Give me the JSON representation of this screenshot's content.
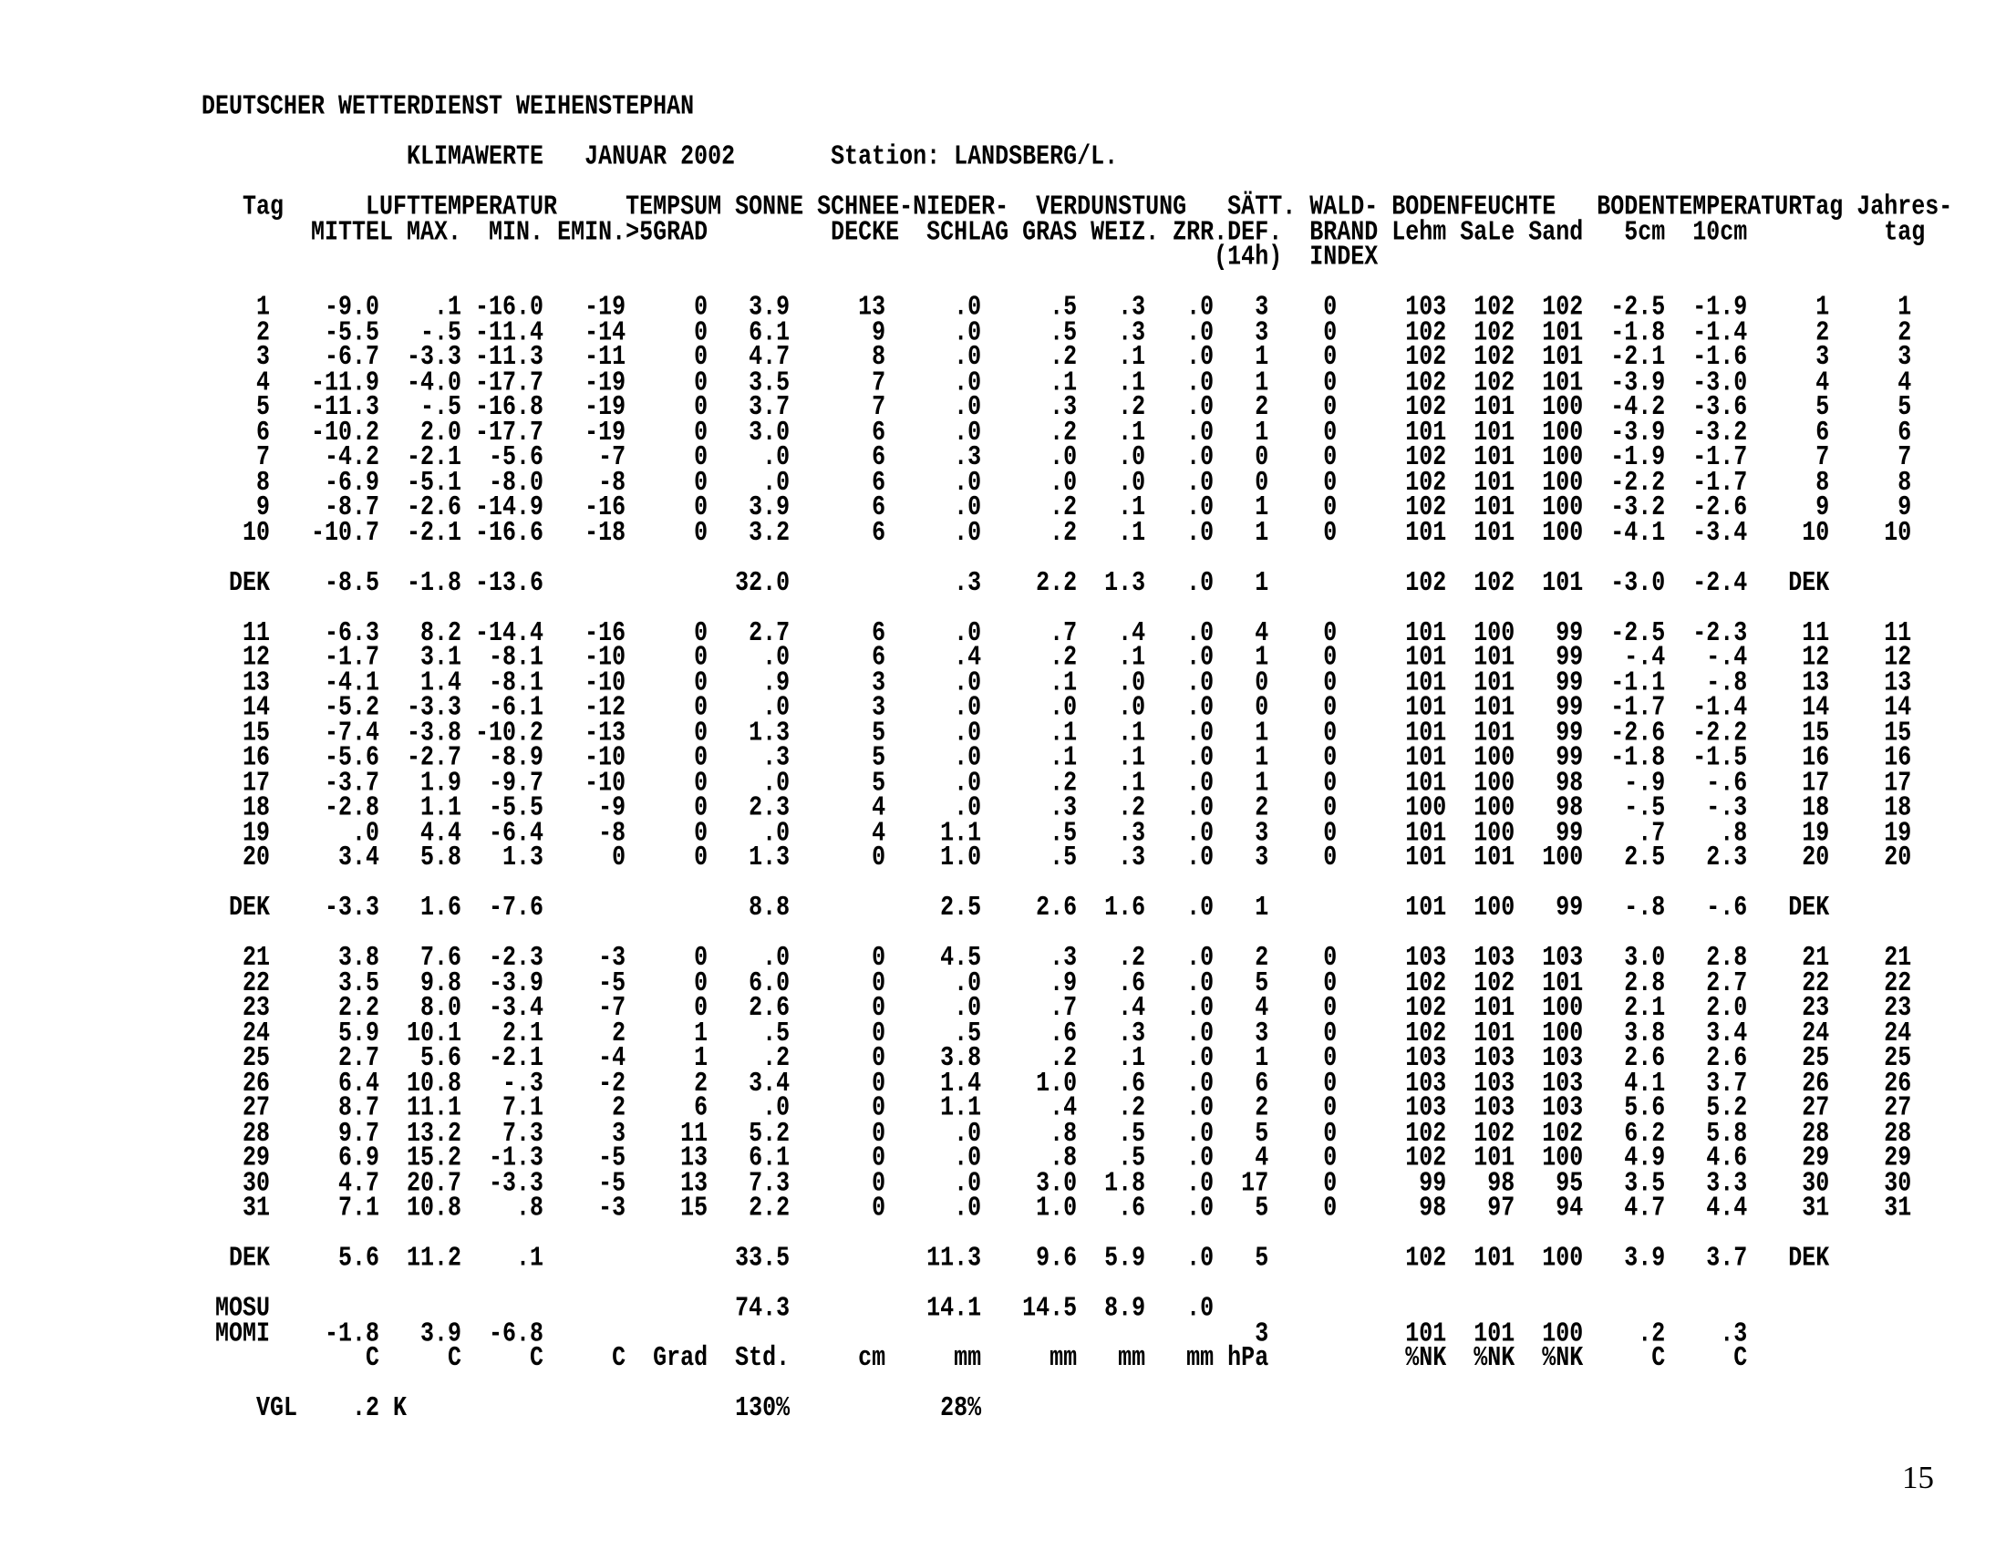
{
  "document": {
    "agency": "DEUTSCHER WETTERDIENST WEIHENSTEPHAN",
    "report_title": "KLIMAWERTE",
    "month": "JANUAR 2002",
    "station": "Station: LANDSBERG/L.",
    "page_number": "15"
  },
  "table": {
    "group_header": [
      "Tag",
      "LUFTTEMPERATUR",
      "TEMPSUM",
      "SONNE",
      "SCHNEE-",
      "NIEDER-",
      "VERDUNSTUNG",
      "SÄTT.",
      "WALD-",
      "BODENFEUCHTE",
      "BODENTEMPERATUR",
      "Tag",
      "Jahres-"
    ],
    "sub_header": [
      "MITTEL",
      "MAX.",
      "MIN.",
      "EMIN.",
      ">5GRAD",
      "DECKE",
      "SCHLAG",
      "GRAS",
      "WEIZ.",
      "ZRR.",
      "DEF.",
      "BRAND",
      "Lehm",
      "SaLe",
      "Sand",
      "5cm",
      "10cm",
      "tag"
    ],
    "sub_header2": [
      "(14h)",
      "INDEX"
    ],
    "day_rows": [
      [
        "1",
        "-9.0",
        ".1",
        "-16.0",
        "-19",
        "0",
        "3.9",
        "13",
        ".0",
        ".5",
        ".3",
        ".0",
        "3",
        "0",
        "103",
        "102",
        "102",
        "-2.5",
        "-1.9",
        "1",
        "1"
      ],
      [
        "2",
        "-5.5",
        "-.5",
        "-11.4",
        "-14",
        "0",
        "6.1",
        "9",
        ".0",
        ".5",
        ".3",
        ".0",
        "3",
        "0",
        "102",
        "102",
        "101",
        "-1.8",
        "-1.4",
        "2",
        "2"
      ],
      [
        "3",
        "-6.7",
        "-3.3",
        "-11.3",
        "-11",
        "0",
        "4.7",
        "8",
        ".0",
        ".2",
        ".1",
        ".0",
        "1",
        "0",
        "102",
        "102",
        "101",
        "-2.1",
        "-1.6",
        "3",
        "3"
      ],
      [
        "4",
        "-11.9",
        "-4.0",
        "-17.7",
        "-19",
        "0",
        "3.5",
        "7",
        ".0",
        ".1",
        ".1",
        ".0",
        "1",
        "0",
        "102",
        "102",
        "101",
        "-3.9",
        "-3.0",
        "4",
        "4"
      ],
      [
        "5",
        "-11.3",
        "-.5",
        "-16.8",
        "-19",
        "0",
        "3.7",
        "7",
        ".0",
        ".3",
        ".2",
        ".0",
        "2",
        "0",
        "102",
        "101",
        "100",
        "-4.2",
        "-3.6",
        "5",
        "5"
      ],
      [
        "6",
        "-10.2",
        "2.0",
        "-17.7",
        "-19",
        "0",
        "3.0",
        "6",
        ".0",
        ".2",
        ".1",
        ".0",
        "1",
        "0",
        "101",
        "101",
        "100",
        "-3.9",
        "-3.2",
        "6",
        "6"
      ],
      [
        "7",
        "-4.2",
        "-2.1",
        "-5.6",
        "-7",
        "0",
        ".0",
        "6",
        ".3",
        ".0",
        ".0",
        ".0",
        "0",
        "0",
        "102",
        "101",
        "100",
        "-1.9",
        "-1.7",
        "7",
        "7"
      ],
      [
        "8",
        "-6.9",
        "-5.1",
        "-8.0",
        "-8",
        "0",
        ".0",
        "6",
        ".0",
        ".0",
        ".0",
        ".0",
        "0",
        "0",
        "102",
        "101",
        "100",
        "-2.2",
        "-1.7",
        "8",
        "8"
      ],
      [
        "9",
        "-8.7",
        "-2.6",
        "-14.9",
        "-16",
        "0",
        "3.9",
        "6",
        ".0",
        ".2",
        ".1",
        ".0",
        "1",
        "0",
        "102",
        "101",
        "100",
        "-3.2",
        "-2.6",
        "9",
        "9"
      ],
      [
        "10",
        "-10.7",
        "-2.1",
        "-16.6",
        "-18",
        "0",
        "3.2",
        "6",
        ".0",
        ".2",
        ".1",
        ".0",
        "1",
        "0",
        "101",
        "101",
        "100",
        "-4.1",
        "-3.4",
        "10",
        "10"
      ],
      [
        "11",
        "-6.3",
        "8.2",
        "-14.4",
        "-16",
        "0",
        "2.7",
        "6",
        ".0",
        ".7",
        ".4",
        ".0",
        "4",
        "0",
        "101",
        "100",
        "99",
        "-2.5",
        "-2.3",
        "11",
        "11"
      ],
      [
        "12",
        "-1.7",
        "3.1",
        "-8.1",
        "-10",
        "0",
        ".0",
        "6",
        ".4",
        ".2",
        ".1",
        ".0",
        "1",
        "0",
        "101",
        "101",
        "99",
        "-.4",
        "-.4",
        "12",
        "12"
      ],
      [
        "13",
        "-4.1",
        "1.4",
        "-8.1",
        "-10",
        "0",
        ".9",
        "3",
        ".0",
        ".1",
        ".0",
        ".0",
        "0",
        "0",
        "101",
        "101",
        "99",
        "-1.1",
        "-.8",
        "13",
        "13"
      ],
      [
        "14",
        "-5.2",
        "-3.3",
        "-6.1",
        "-12",
        "0",
        ".0",
        "3",
        ".0",
        ".0",
        ".0",
        ".0",
        "0",
        "0",
        "101",
        "101",
        "99",
        "-1.7",
        "-1.4",
        "14",
        "14"
      ],
      [
        "15",
        "-7.4",
        "-3.8",
        "-10.2",
        "-13",
        "0",
        "1.3",
        "5",
        ".0",
        ".1",
        ".1",
        ".0",
        "1",
        "0",
        "101",
        "101",
        "99",
        "-2.6",
        "-2.2",
        "15",
        "15"
      ],
      [
        "16",
        "-5.6",
        "-2.7",
        "-8.9",
        "-10",
        "0",
        ".3",
        "5",
        ".0",
        ".1",
        ".1",
        ".0",
        "1",
        "0",
        "101",
        "100",
        "99",
        "-1.8",
        "-1.5",
        "16",
        "16"
      ],
      [
        "17",
        "-3.7",
        "1.9",
        "-9.7",
        "-10",
        "0",
        ".0",
        "5",
        ".0",
        ".2",
        ".1",
        ".0",
        "1",
        "0",
        "101",
        "100",
        "98",
        "-.9",
        "-.6",
        "17",
        "17"
      ],
      [
        "18",
        "-2.8",
        "1.1",
        "-5.5",
        "-9",
        "0",
        "2.3",
        "4",
        ".0",
        ".3",
        ".2",
        ".0",
        "2",
        "0",
        "100",
        "100",
        "98",
        "-.5",
        "-.3",
        "18",
        "18"
      ],
      [
        "19",
        ".0",
        "4.4",
        "-6.4",
        "-8",
        "0",
        ".0",
        "4",
        "1.1",
        ".5",
        ".3",
        ".0",
        "3",
        "0",
        "101",
        "100",
        "99",
        ".7",
        ".8",
        "19",
        "19"
      ],
      [
        "20",
        "3.4",
        "5.8",
        "1.3",
        "0",
        "0",
        "1.3",
        "0",
        "1.0",
        ".5",
        ".3",
        ".0",
        "3",
        "0",
        "101",
        "101",
        "100",
        "2.5",
        "2.3",
        "20",
        "20"
      ],
      [
        "21",
        "3.8",
        "7.6",
        "-2.3",
        "-3",
        "0",
        ".0",
        "0",
        "4.5",
        ".3",
        ".2",
        ".0",
        "2",
        "0",
        "103",
        "103",
        "103",
        "3.0",
        "2.8",
        "21",
        "21"
      ],
      [
        "22",
        "3.5",
        "9.8",
        "-3.9",
        "-5",
        "0",
        "6.0",
        "0",
        ".0",
        ".9",
        ".6",
        ".0",
        "5",
        "0",
        "102",
        "102",
        "101",
        "2.8",
        "2.7",
        "22",
        "22"
      ],
      [
        "23",
        "2.2",
        "8.0",
        "-3.4",
        "-7",
        "0",
        "2.6",
        "0",
        ".0",
        ".7",
        ".4",
        ".0",
        "4",
        "0",
        "102",
        "101",
        "100",
        "2.1",
        "2.0",
        "23",
        "23"
      ],
      [
        "24",
        "5.9",
        "10.1",
        "2.1",
        "2",
        "1",
        ".5",
        "0",
        ".5",
        ".6",
        ".3",
        ".0",
        "3",
        "0",
        "102",
        "101",
        "100",
        "3.8",
        "3.4",
        "24",
        "24"
      ],
      [
        "25",
        "2.7",
        "5.6",
        "-2.1",
        "-4",
        "1",
        ".2",
        "0",
        "3.8",
        ".2",
        ".1",
        ".0",
        "1",
        "0",
        "103",
        "103",
        "103",
        "2.6",
        "2.6",
        "25",
        "25"
      ],
      [
        "26",
        "6.4",
        "10.8",
        "-.3",
        "-2",
        "2",
        "3.4",
        "0",
        "1.4",
        "1.0",
        ".6",
        ".0",
        "6",
        "0",
        "103",
        "103",
        "103",
        "4.1",
        "3.7",
        "26",
        "26"
      ],
      [
        "27",
        "8.7",
        "11.1",
        "7.1",
        "2",
        "6",
        ".0",
        "0",
        "1.1",
        ".4",
        ".2",
        ".0",
        "2",
        "0",
        "103",
        "103",
        "103",
        "5.6",
        "5.2",
        "27",
        "27"
      ],
      [
        "28",
        "9.7",
        "13.2",
        "7.3",
        "3",
        "11",
        "5.2",
        "0",
        ".0",
        ".8",
        ".5",
        ".0",
        "5",
        "0",
        "102",
        "102",
        "102",
        "6.2",
        "5.8",
        "28",
        "28"
      ],
      [
        "29",
        "6.9",
        "15.2",
        "-1.3",
        "-5",
        "13",
        "6.1",
        "0",
        ".0",
        ".8",
        ".5",
        ".0",
        "4",
        "0",
        "102",
        "101",
        "100",
        "4.9",
        "4.6",
        "29",
        "29"
      ],
      [
        "30",
        "4.7",
        "20.7",
        "-3.3",
        "-5",
        "13",
        "7.3",
        "0",
        ".0",
        "3.0",
        "1.8",
        ".0",
        "17",
        "0",
        "99",
        "98",
        "95",
        "3.5",
        "3.3",
        "30",
        "30"
      ],
      [
        "31",
        "7.1",
        "10.8",
        ".8",
        "-3",
        "15",
        "2.2",
        "0",
        ".0",
        "1.0",
        ".6",
        ".0",
        "5",
        "0",
        "98",
        "97",
        "94",
        "4.7",
        "4.4",
        "31",
        "31"
      ]
    ],
    "dek_rows": [
      [
        "DEK",
        "-8.5",
        "-1.8",
        "-13.6",
        "",
        "",
        "32.0",
        "",
        ".3",
        "2.2",
        "1.3",
        ".0",
        "1",
        "",
        "102",
        "102",
        "101",
        "-3.0",
        "-2.4",
        "DEK",
        ""
      ],
      [
        "DEK",
        "-3.3",
        "1.6",
        "-7.6",
        "",
        "",
        "8.8",
        "",
        "2.5",
        "2.6",
        "1.6",
        ".0",
        "1",
        "",
        "101",
        "100",
        "99",
        "-.8",
        "-.6",
        "DEK",
        ""
      ],
      [
        "DEK",
        "5.6",
        "11.2",
        ".1",
        "",
        "",
        "33.5",
        "",
        "11.3",
        "9.6",
        "5.9",
        ".0",
        "5",
        "",
        "102",
        "101",
        "100",
        "3.9",
        "3.7",
        "DEK",
        ""
      ]
    ],
    "mosu_row": [
      "MOSU",
      "",
      "",
      "",
      "",
      "",
      "74.3",
      "",
      "14.1",
      "14.5",
      "8.9",
      ".0",
      "",
      "",
      "",
      "",
      "",
      "",
      "",
      "",
      ""
    ],
    "momi_row": [
      "MOMI",
      "-1.8",
      "3.9",
      "-6.8",
      "",
      "",
      "",
      "",
      "",
      "",
      "",
      "",
      "3",
      "",
      "101",
      "101",
      "100",
      ".2",
      ".3",
      "",
      ""
    ],
    "units_row": [
      "",
      "C",
      "C",
      "C",
      "C",
      "Grad",
      "Std.",
      "cm",
      "mm",
      "mm",
      "mm",
      "mm",
      "hPa",
      "",
      "%NK",
      "%NK",
      "%NK",
      "C",
      "C",
      "",
      ""
    ],
    "vgl_row": {
      "label": "VGL",
      "lufttemperatur": ".2 K",
      "sonne": "130%",
      "niederschlag": "28%"
    }
  }
}
